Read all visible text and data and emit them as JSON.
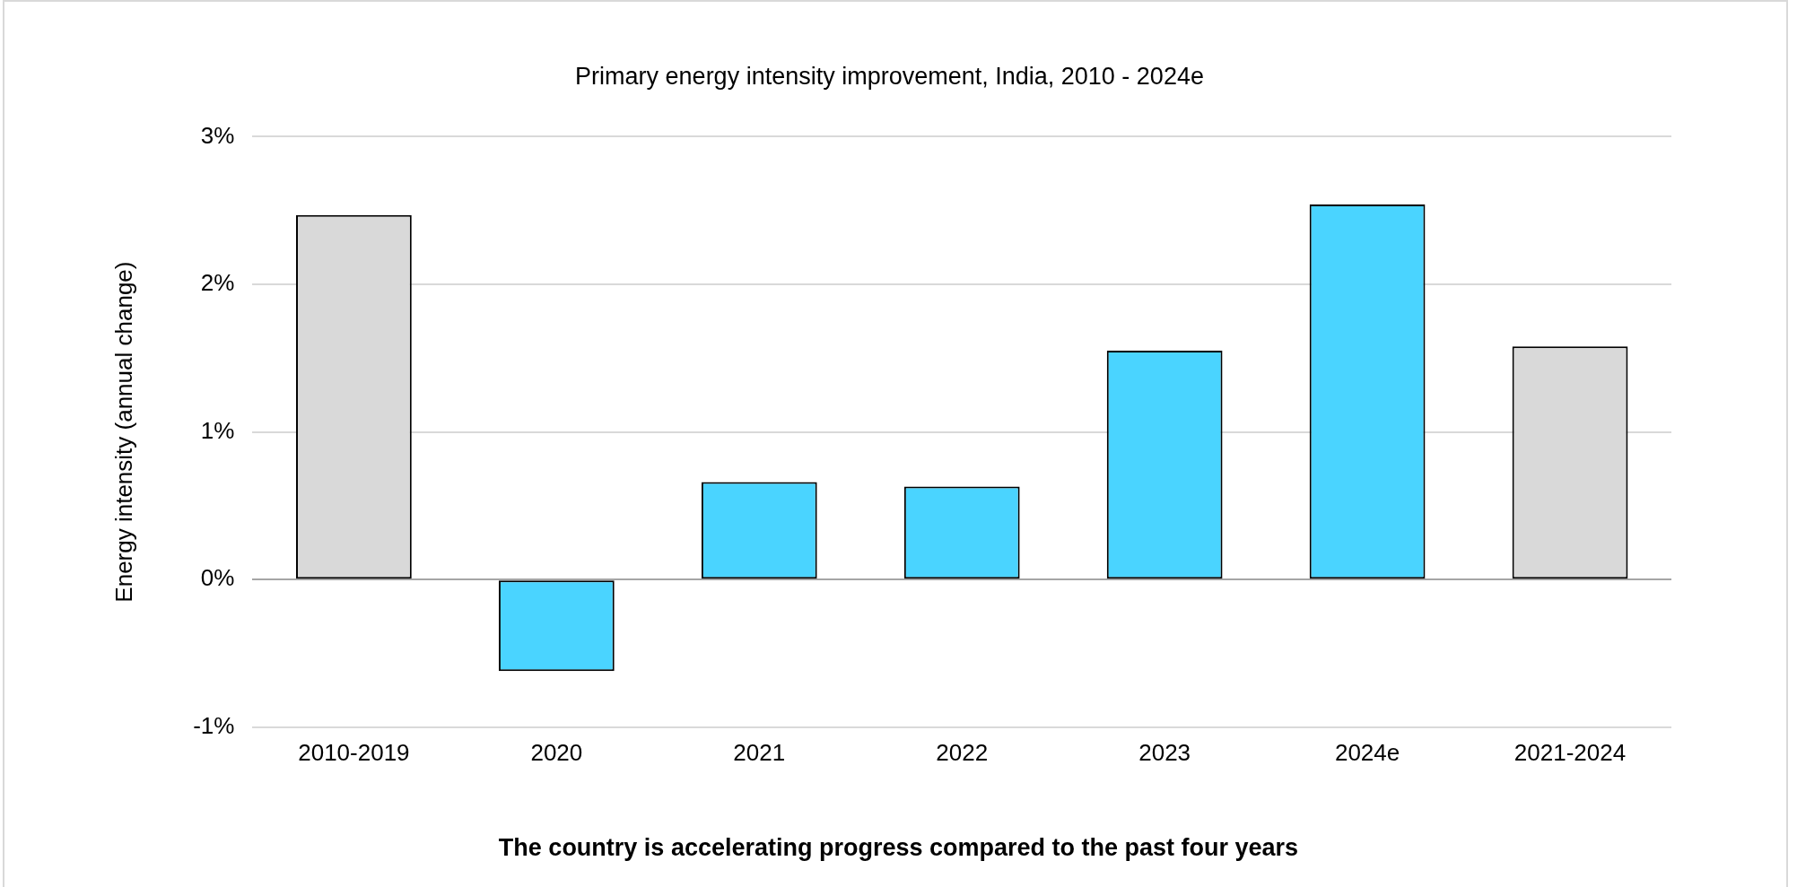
{
  "chart_data": {
    "type": "bar",
    "title": "Primary energy intensity improvement, India, 2010 - 2024e",
    "ylabel": "Energy intensity (annual change)",
    "categories": [
      "2010-2019",
      "2020",
      "2021",
      "2022",
      "2023",
      "2024e",
      "2021-2024"
    ],
    "values": [
      2.47,
      -0.62,
      0.66,
      0.63,
      1.55,
      2.54,
      1.58
    ],
    "colors": [
      "#d9d9d9",
      "#4ad4ff",
      "#4ad4ff",
      "#4ad4ff",
      "#4ad4ff",
      "#4ad4ff",
      "#d9d9d9"
    ],
    "ylim": [
      -1,
      3
    ],
    "yticks": [
      {
        "value": -1,
        "label": "-1%"
      },
      {
        "value": 0,
        "label": "0%"
      },
      {
        "value": 1,
        "label": "1%"
      },
      {
        "value": 2,
        "label": "2%"
      },
      {
        "value": 3,
        "label": "3%"
      }
    ],
    "grid": "y",
    "legend": false,
    "annotations": [
      "The country is accelerating progress compared to the past four years"
    ]
  }
}
